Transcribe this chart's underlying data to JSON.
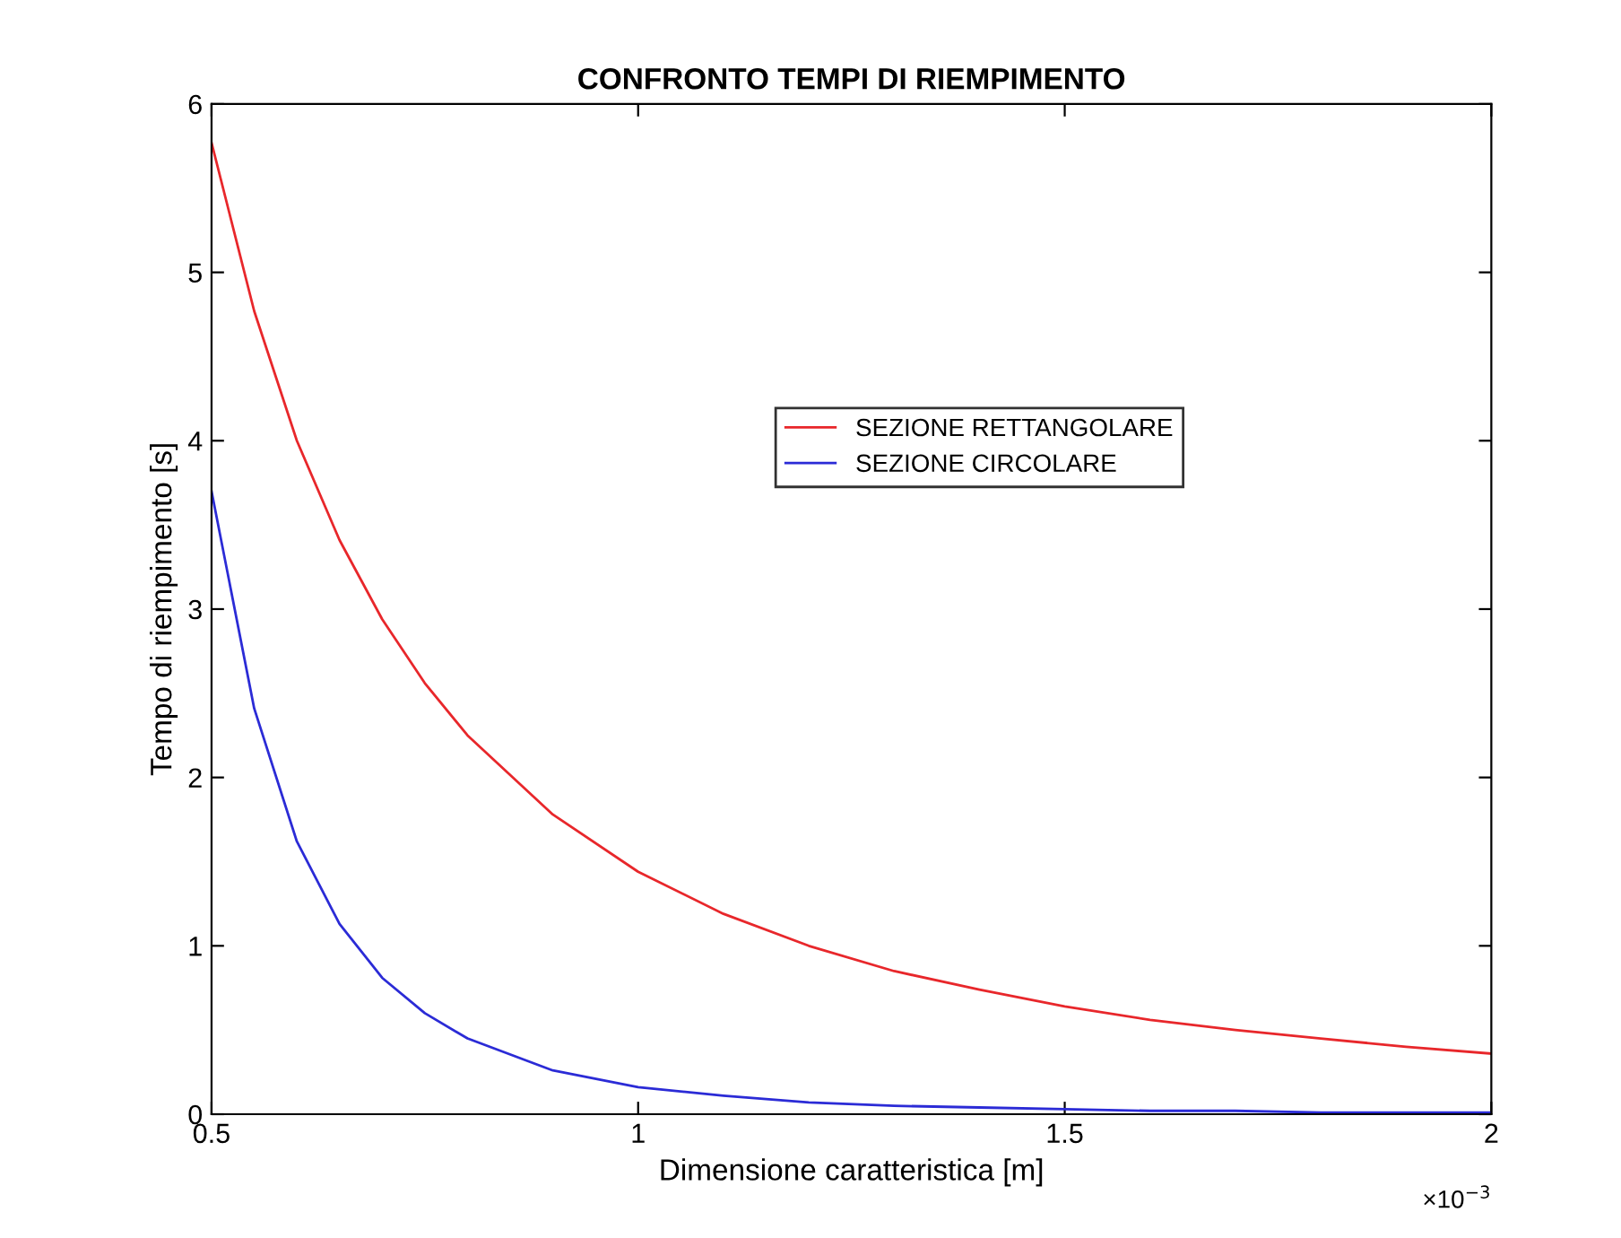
{
  "chart_data": {
    "type": "line",
    "title": "CONFRONTO TEMPI DI RIEMPIMENTO",
    "xlabel": "Dimensione caratteristica [m]",
    "ylabel": "Tempo di riempimento [s]",
    "annotations": [
      "×10$^{−3}$"
    ],
    "x": [
      0.5,
      0.55,
      0.6,
      0.65,
      0.7,
      0.75,
      0.8,
      0.9,
      1.0,
      1.1,
      1.2,
      1.3,
      1.4,
      1.5,
      1.6,
      1.7,
      1.8,
      1.9,
      2.0
    ],
    "series": [
      {
        "name": "SEZIONE RETTANGOLARE",
        "color": "#e8272b",
        "values": [
          5.77,
          4.77,
          4.0,
          3.41,
          2.94,
          2.56,
          2.25,
          1.78,
          1.44,
          1.19,
          1.0,
          0.85,
          0.74,
          0.64,
          0.56,
          0.5,
          0.45,
          0.4,
          0.36
        ]
      },
      {
        "name": "SEZIONE CIRCOLARE",
        "color": "#2b2bd6",
        "values": [
          3.7,
          2.41,
          1.62,
          1.13,
          0.81,
          0.6,
          0.45,
          0.26,
          0.16,
          0.11,
          0.07,
          0.05,
          0.04,
          0.03,
          0.02,
          0.02,
          0.01,
          0.01,
          0.01
        ]
      }
    ],
    "xlim": [
      0.5,
      2
    ],
    "xticks": [
      0.5,
      1,
      1.5,
      2
    ],
    "ylim": [
      0,
      6
    ],
    "yticks": [
      0,
      1,
      2,
      3,
      4,
      5,
      6
    ],
    "grid": false,
    "legend": "center",
    "marker": "none",
    "line_style": "solid"
  }
}
